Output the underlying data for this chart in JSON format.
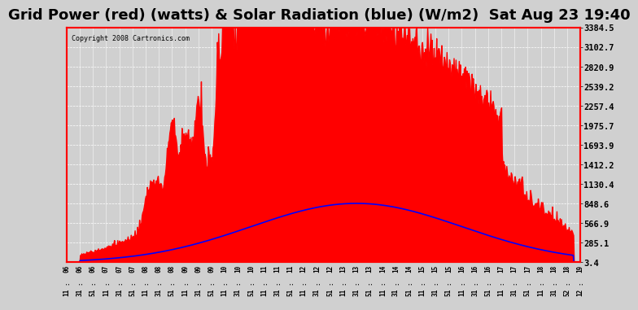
{
  "title": "Grid Power (red) (watts) & Solar Radiation (blue) (W/m2)  Sat Aug 23 19:40",
  "copyright": "Copyright 2008 Cartronics.com",
  "background_color": "#d0d0d0",
  "plot_bg_color": "#d0d0d0",
  "y_min": 3.4,
  "y_max": 3384.5,
  "y_ticks": [
    3384.5,
    3102.7,
    2820.9,
    2539.2,
    2257.4,
    1975.7,
    1693.9,
    1412.2,
    1130.4,
    848.6,
    566.9,
    285.1,
    3.4
  ],
  "x_labels": [
    "06:11",
    "06:31",
    "06:51",
    "07:11",
    "07:31",
    "07:51",
    "08:11",
    "08:31",
    "08:51",
    "09:11",
    "09:31",
    "09:51",
    "10:11",
    "10:31",
    "10:51",
    "11:11",
    "11:31",
    "11:51",
    "12:11",
    "12:31",
    "12:51",
    "13:11",
    "13:31",
    "13:51",
    "14:11",
    "14:31",
    "14:51",
    "15:11",
    "15:31",
    "15:51",
    "16:11",
    "16:31",
    "16:51",
    "17:11",
    "17:31",
    "17:51",
    "18:11",
    "18:31",
    "18:52",
    "19:12"
  ],
  "grid_color": "#ffffff",
  "border_color": "#ff0000",
  "red_fill_color": "#ff0000",
  "blue_line_color": "#0000ff",
  "title_fontsize": 13,
  "tick_fontsize": 7.5
}
